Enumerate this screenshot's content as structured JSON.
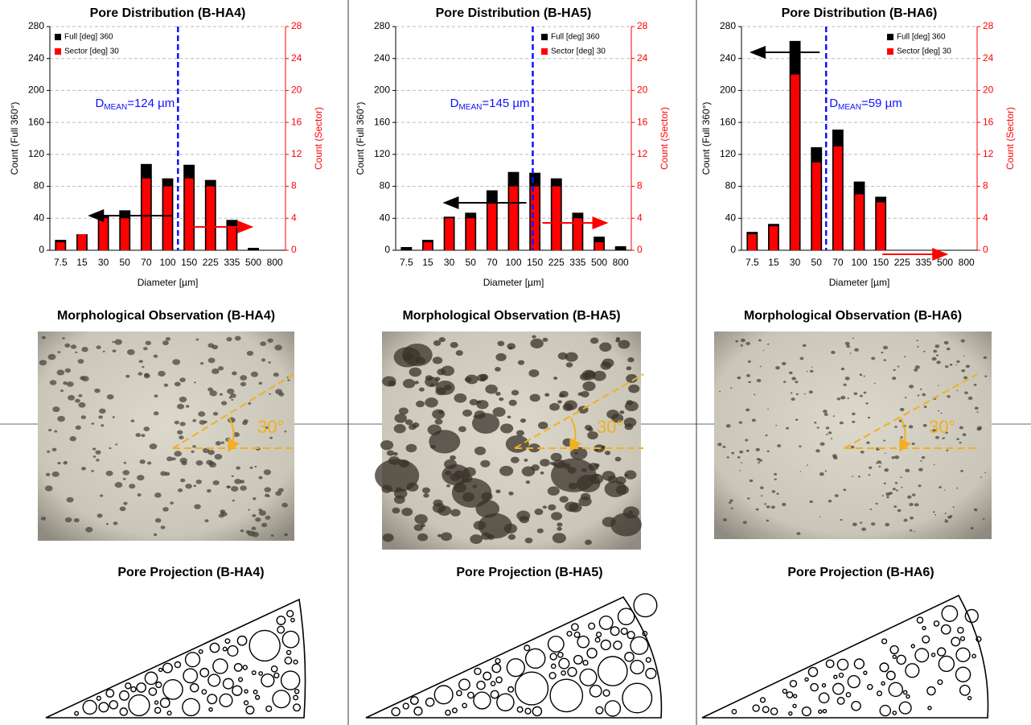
{
  "chart_data": [
    {
      "type": "bar",
      "title": "Pore Distribution (B-HA4)",
      "x_label": "Diameter [µm]",
      "y_label": "Count (Full 360°)",
      "y2_label": "Count (Sector)",
      "categories": [
        "7.5",
        "15",
        "30",
        "50",
        "70",
        "100",
        "150",
        "225",
        "335",
        "500",
        "800"
      ],
      "series": [
        {
          "name": "Full [deg] 360",
          "color": "#000000",
          "values": [
            13,
            20,
            43,
            50,
            108,
            90,
            107,
            88,
            38,
            3,
            0
          ]
        },
        {
          "name": "Sector [deg] 30",
          "color": "#ff0000",
          "axis": "y2",
          "values": [
            1,
            2,
            4,
            4,
            9,
            8,
            9,
            8,
            3,
            0,
            0
          ]
        }
      ],
      "ylim": [
        0,
        280
      ],
      "yticks": [
        0,
        40,
        80,
        120,
        160,
        200,
        240,
        280
      ],
      "y2lim": [
        0,
        28
      ],
      "y2ticks": [
        0,
        4,
        8,
        12,
        16,
        20,
        24,
        28
      ],
      "grid": true,
      "legend": "upper left",
      "mean_line": 124,
      "mean_label": {
        "prefix": "D",
        "subscript": "MEAN",
        "text": "=124 µm"
      }
    },
    {
      "type": "bar",
      "title": "Pore Distribution (B-HA5)",
      "x_label": "Diameter [µm]",
      "y_label": "Count (Full 360°)",
      "y2_label": "Count (Sector)",
      "categories": [
        "7.5",
        "15",
        "30",
        "50",
        "70",
        "100",
        "150",
        "225",
        "335",
        "500",
        "800"
      ],
      "series": [
        {
          "name": "Full [deg] 360",
          "color": "#000000",
          "values": [
            4,
            13,
            42,
            47,
            75,
            98,
            97,
            90,
            47,
            17,
            5
          ]
        },
        {
          "name": "Sector [deg] 30",
          "color": "#ff0000",
          "axis": "y2",
          "values": [
            0,
            1,
            4,
            4,
            6,
            8,
            8,
            8,
            4,
            1,
            0
          ]
        }
      ],
      "ylim": [
        0,
        280
      ],
      "yticks": [
        0,
        40,
        80,
        120,
        160,
        200,
        240,
        280
      ],
      "y2lim": [
        0,
        28
      ],
      "y2ticks": [
        0,
        4,
        8,
        12,
        16,
        20,
        24,
        28
      ],
      "grid": true,
      "legend": "upper right",
      "mean_line": 145,
      "mean_label": {
        "prefix": "D",
        "subscript": "MEAN",
        "text": "=145 µm"
      }
    },
    {
      "type": "bar",
      "title": "Pore Distribution (B-HA6)",
      "x_label": "Diameter [µm]",
      "y_label": "Count (Full 360°)",
      "y2_label": "Count (Sector)",
      "categories": [
        "7.5",
        "15",
        "30",
        "50",
        "70",
        "100",
        "150",
        "225",
        "335",
        "500",
        "800"
      ],
      "series": [
        {
          "name": "Full [deg] 360",
          "color": "#000000",
          "values": [
            23,
            33,
            262,
            129,
            151,
            86,
            67,
            0,
            0,
            0,
            0
          ]
        },
        {
          "name": "Sector [deg] 30",
          "color": "#ff0000",
          "axis": "y2",
          "values": [
            2,
            3,
            22,
            11,
            13,
            7,
            6,
            0,
            0,
            0,
            0
          ]
        }
      ],
      "ylim": [
        0,
        280
      ],
      "yticks": [
        0,
        40,
        80,
        120,
        160,
        200,
        240,
        280
      ],
      "y2lim": [
        0,
        28
      ],
      "y2ticks": [
        0,
        4,
        8,
        12,
        16,
        20,
        24,
        28
      ],
      "grid": true,
      "legend": "upper right",
      "mean_line": 59,
      "mean_label": {
        "prefix": "D",
        "subscript": "MEAN",
        "text": "=59 µm"
      }
    }
  ],
  "morphology": [
    {
      "title": "Morphological Observation (B-HA4)",
      "angle_label": "30°"
    },
    {
      "title": "Morphological Observation (B-HA5)",
      "angle_label": "30°"
    },
    {
      "title": "Morphological Observation (B-HA6)",
      "angle_label": "30°"
    }
  ],
  "projection": [
    {
      "title": "Pore Projection (B-HA4)"
    },
    {
      "title": "Pore Projection (B-HA5)"
    },
    {
      "title": "Pore Projection (B-HA6)"
    }
  ]
}
